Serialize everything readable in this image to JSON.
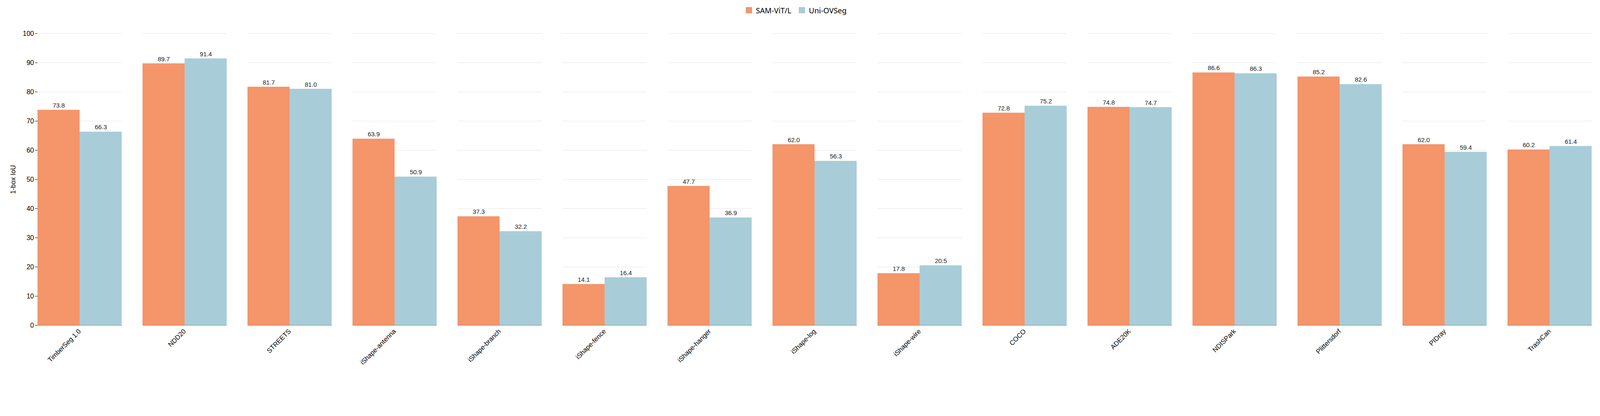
{
  "chart_data": {
    "type": "bar",
    "categories": [
      "TimberSeg 1.0",
      "NDD20",
      "STREETS",
      "iShape-antenna",
      "iShape-branch",
      "iShape-fence",
      "iShape-hanger",
      "iShape-log",
      "iShape-wire",
      "COCO",
      "ADE20K",
      "NDISPark",
      "Plittersdorf",
      "PIDray",
      "TrashCan"
    ],
    "series": [
      {
        "name": "SAM-ViT/L",
        "color": "#F4956A",
        "values": [
          73.8,
          89.7,
          81.7,
          63.9,
          37.3,
          14.1,
          47.7,
          62.0,
          17.8,
          72.8,
          74.8,
          86.6,
          85.2,
          62.0,
          60.2
        ],
        "value_labels": [
          "73.8",
          "89.7",
          "81.7",
          "63.9",
          "37.3",
          "14.1",
          "47.7",
          "62.0",
          "17.8",
          "72.8",
          "74.8",
          "86.6",
          "85.2",
          "62.0",
          "60.2"
        ]
      },
      {
        "name": "Uni-OVSeg",
        "color": "#A8CDD8",
        "values": [
          66.3,
          91.4,
          81.0,
          50.9,
          32.2,
          16.4,
          36.9,
          56.3,
          20.5,
          75.2,
          74.7,
          86.3,
          82.6,
          59.4,
          61.4
        ],
        "value_labels": [
          "66.3",
          "91.4",
          "81.0",
          "50.9",
          "32.2",
          "16.4",
          "36.9",
          "56.3",
          "20.5",
          "75.2",
          "74.7",
          "86.3",
          "82.6",
          "59.4",
          "61.4"
        ]
      }
    ],
    "ylabel": "1-box IoU",
    "ylim": [
      0,
      100
    ],
    "yticks": [
      0,
      10,
      20,
      30,
      40,
      50,
      60,
      70,
      80,
      90,
      100
    ],
    "grid": true,
    "legend": "top",
    "data_labels": true
  }
}
